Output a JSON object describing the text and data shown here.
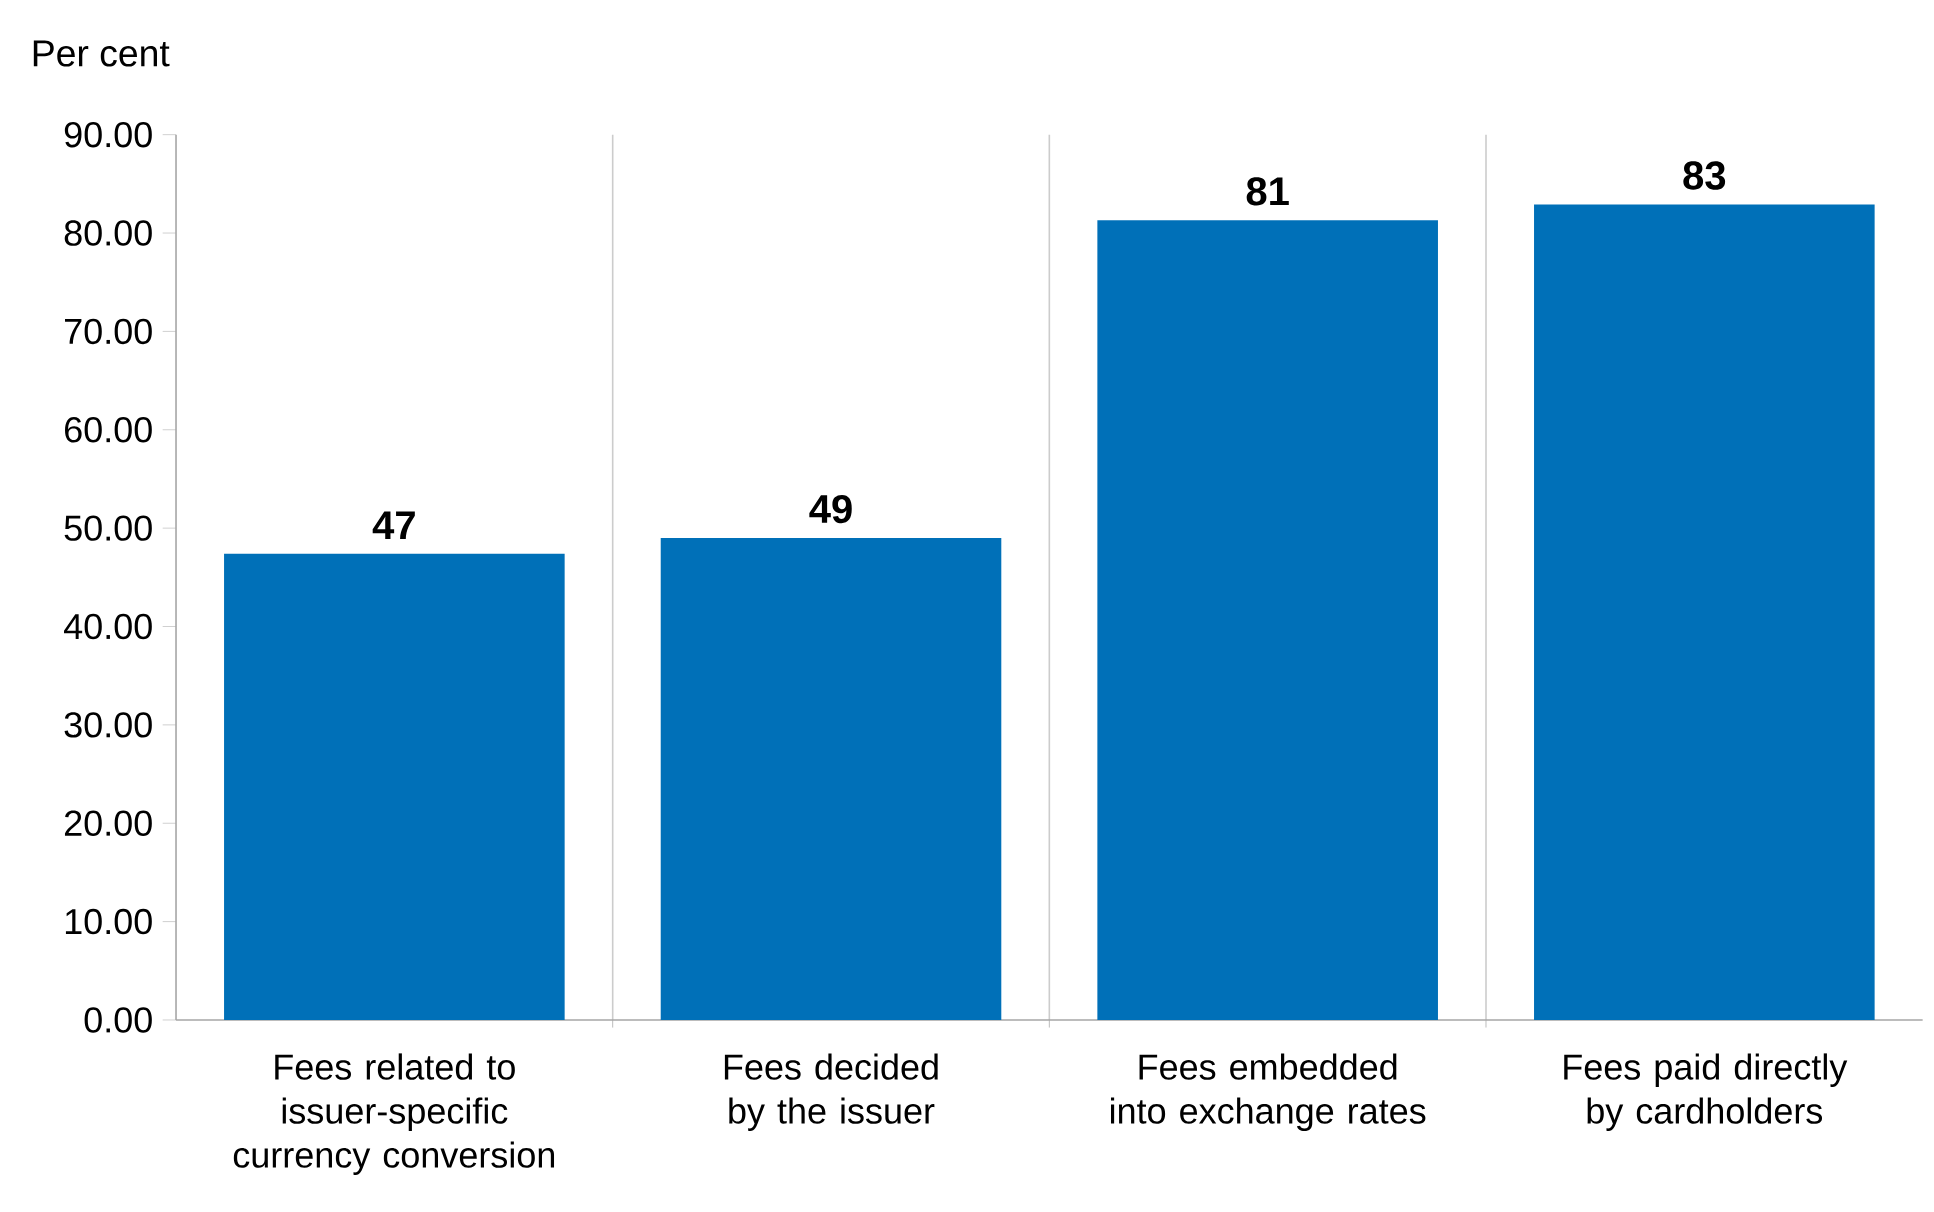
{
  "chart_data": {
    "type": "bar",
    "ylabel": "Per cent",
    "categories": [
      "Fees related to issuer-specific currency conversion",
      "Fees decided by the issuer",
      "Fees embedded into exchange rates",
      "Fees paid directly by cardholders"
    ],
    "values": [
      47.4,
      49,
      81.3,
      82.9
    ],
    "value_labels": [
      "47",
      "49",
      "81",
      "83"
    ],
    "color": "#0070b8",
    "ylim": [
      0,
      90
    ],
    "yticks": [
      {
        "value": 0,
        "label": "0.00"
      },
      {
        "value": 10,
        "label": "10.00"
      },
      {
        "value": 20,
        "label": "20.00"
      },
      {
        "value": 30,
        "label": "30.00"
      },
      {
        "value": 40,
        "label": "40.00"
      },
      {
        "value": 50,
        "label": "50.00"
      },
      {
        "value": 60,
        "label": "60.00"
      },
      {
        "value": 70,
        "label": "70.00"
      },
      {
        "value": 80,
        "label": "80.00"
      },
      {
        "value": 90,
        "label": "90.00"
      }
    ],
    "grid": "x"
  }
}
